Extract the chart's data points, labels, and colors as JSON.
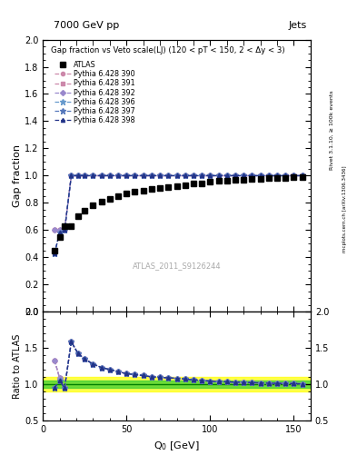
{
  "title_top": "7000 GeV pp",
  "title_right": "Jets",
  "plot_title": "Gap fraction vs Veto scale(LJ) (120 < pT < 150, 2 < Δy < 3)",
  "watermark": "ATLAS_2011_S9126244",
  "right_label_top": "Rivet 3.1.10, ≥ 100k events",
  "right_label_bot": "mcplots.cern.ch [arXiv:1306.3436]",
  "xlabel": "Q$_0$ [GeV]",
  "ylabel_main": "Gap fraction",
  "ylabel_ratio": "Ratio to ATLAS",
  "xlim": [
    0,
    160
  ],
  "ylim_main": [
    0.0,
    2.0
  ],
  "ylim_ratio": [
    0.5,
    2.0
  ],
  "atlas_x": [
    7,
    10,
    13,
    17,
    21,
    25,
    30,
    35,
    40,
    45,
    50,
    55,
    60,
    65,
    70,
    75,
    80,
    85,
    90,
    95,
    100,
    105,
    110,
    115,
    120,
    125,
    130,
    135,
    140,
    145,
    150,
    155
  ],
  "atlas_y": [
    0.45,
    0.55,
    0.63,
    0.63,
    0.7,
    0.74,
    0.78,
    0.81,
    0.83,
    0.85,
    0.87,
    0.88,
    0.89,
    0.905,
    0.91,
    0.916,
    0.922,
    0.93,
    0.94,
    0.946,
    0.955,
    0.96,
    0.965,
    0.968,
    0.972,
    0.976,
    0.978,
    0.982,
    0.984,
    0.986,
    0.988,
    0.99
  ],
  "mc_x": [
    7,
    10,
    13,
    17,
    21,
    25,
    30,
    35,
    40,
    45,
    50,
    55,
    60,
    65,
    70,
    75,
    80,
    85,
    90,
    95,
    100,
    105,
    110,
    115,
    120,
    125,
    130,
    135,
    140,
    145,
    150,
    155
  ],
  "mc_390_y": [
    0.6,
    0.6,
    0.6,
    1.0,
    1.0,
    1.0,
    1.0,
    1.0,
    1.0,
    1.0,
    1.0,
    1.0,
    1.0,
    1.0,
    1.0,
    1.0,
    1.0,
    1.0,
    1.0,
    1.0,
    1.0,
    1.0,
    1.0,
    1.0,
    1.0,
    1.0,
    1.0,
    1.0,
    1.0,
    1.0,
    1.0,
    1.0
  ],
  "mc_391_y": [
    0.6,
    0.6,
    0.6,
    1.0,
    1.0,
    1.0,
    1.0,
    1.0,
    1.0,
    1.0,
    1.0,
    1.0,
    1.0,
    1.0,
    1.0,
    1.0,
    1.0,
    1.0,
    1.0,
    1.0,
    1.0,
    1.0,
    1.0,
    1.0,
    1.0,
    1.0,
    1.0,
    1.0,
    1.0,
    1.0,
    1.0,
    1.0
  ],
  "mc_392_y": [
    0.6,
    0.6,
    0.6,
    1.0,
    1.0,
    1.0,
    1.0,
    1.0,
    1.0,
    1.0,
    1.0,
    1.0,
    1.0,
    1.0,
    1.0,
    1.0,
    1.0,
    1.0,
    1.0,
    1.0,
    1.0,
    1.0,
    1.0,
    1.0,
    1.0,
    1.0,
    1.0,
    1.0,
    1.0,
    1.0,
    1.0,
    1.0
  ],
  "mc_396_y": [
    0.43,
    0.58,
    0.6,
    1.0,
    1.0,
    1.0,
    1.0,
    1.0,
    1.0,
    1.0,
    1.0,
    1.0,
    1.0,
    1.0,
    1.0,
    1.0,
    1.0,
    1.0,
    1.0,
    1.0,
    1.0,
    1.0,
    1.0,
    1.0,
    1.0,
    1.0,
    1.0,
    1.0,
    1.0,
    1.0,
    1.0,
    1.0
  ],
  "mc_397_y": [
    0.43,
    0.58,
    0.6,
    1.0,
    1.0,
    1.0,
    1.0,
    1.0,
    1.0,
    1.0,
    1.0,
    1.0,
    1.0,
    1.0,
    1.0,
    1.0,
    1.0,
    1.0,
    1.0,
    1.0,
    1.0,
    1.0,
    1.0,
    1.0,
    1.0,
    1.0,
    1.0,
    1.0,
    1.0,
    1.0,
    1.0,
    1.0
  ],
  "mc_398_y": [
    0.43,
    0.58,
    0.6,
    1.0,
    1.0,
    1.0,
    1.0,
    1.0,
    1.0,
    1.0,
    1.0,
    1.0,
    1.0,
    1.0,
    1.0,
    1.0,
    1.0,
    1.0,
    1.0,
    1.0,
    1.0,
    1.0,
    1.0,
    1.0,
    1.0,
    1.0,
    1.0,
    1.0,
    1.0,
    1.0,
    1.0,
    1.0
  ],
  "colors": [
    "#cc88aa",
    "#cc88aa",
    "#9988cc",
    "#6699cc",
    "#5577bb",
    "#223388"
  ],
  "markers": [
    "o",
    "s",
    "D",
    "*",
    "*",
    "^"
  ],
  "marker_sizes": [
    3,
    3,
    3,
    5,
    5,
    3
  ],
  "mc_keys": [
    "mc_390_y",
    "mc_391_y",
    "mc_392_y",
    "mc_396_y",
    "mc_397_y",
    "mc_398_y"
  ],
  "mc_labels": [
    "Pythia 6.428 390",
    "Pythia 6.428 391",
    "Pythia 6.428 392",
    "Pythia 6.428 396",
    "Pythia 6.428 397",
    "Pythia 6.428 398"
  ],
  "xticks": [
    0,
    50,
    100,
    150
  ],
  "yticks_main": [
    0.0,
    0.2,
    0.4,
    0.6,
    0.8,
    1.0,
    1.2,
    1.4,
    1.6,
    1.8,
    2.0
  ],
  "yticks_ratio": [
    0.5,
    1.0,
    1.5,
    2.0
  ],
  "band_yellow": [
    0.9,
    1.1
  ],
  "band_green": [
    0.95,
    1.05
  ]
}
